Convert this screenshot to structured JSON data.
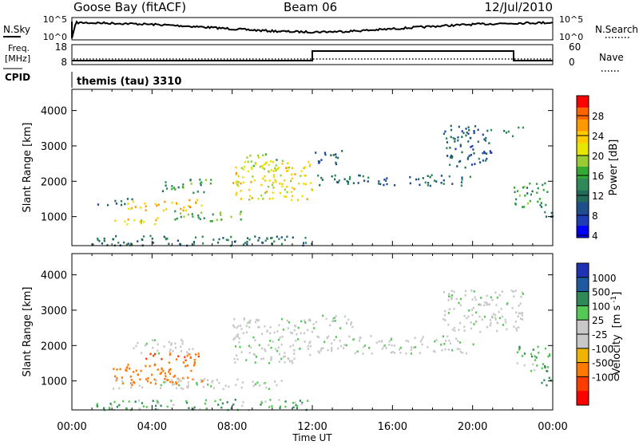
{
  "header": {
    "station": "Goose Bay (fitACF)",
    "beam": "Beam 06",
    "date": "12/Jul/2010"
  },
  "noise_panel": {
    "left_label": "N.Sky",
    "right_label": "N.Search",
    "ticks_left": [
      "10^5",
      "10^0"
    ],
    "ticks_right": [
      "10^5",
      "10^0"
    ]
  },
  "freq_panel": {
    "left_label_1": "Freq.",
    "left_label_2": "[MHz]",
    "right_label": "Nave",
    "ticks_left": [
      "18",
      "8"
    ],
    "ticks_right": [
      "60",
      "0"
    ]
  },
  "cpid": {
    "label": "CPID",
    "value": "themis (tau) 3310"
  },
  "time_axis": {
    "label": "Time UT",
    "ticks": [
      "00:00",
      "04:00",
      "08:00",
      "12:00",
      "16:00",
      "20:00",
      "00:00"
    ]
  },
  "power_colorbar": {
    "label": "Power [dB]",
    "ticks": [
      "28",
      "24",
      "20",
      "16",
      "12",
      "8",
      "4"
    ],
    "colors": [
      "#ff0000",
      "#ff6400",
      "#ff9900",
      "#ffcc00",
      "#e6e600",
      "#99cc33",
      "#33aa33",
      "#2e8b57",
      "#226b5a",
      "#1e4e8c",
      "#1e3cb4",
      "#0000ff"
    ]
  },
  "velocity_colorbar": {
    "label_main": "Velocity",
    "label_units": "[m s",
    "label_exp": "-1",
    "label_close": "]",
    "ticks": [
      "1000",
      "500",
      "100",
      "25",
      "-25",
      "-100",
      "-500",
      "-1000"
    ],
    "colors": [
      "#1e32b4",
      "#1e5aa0",
      "#2e8b57",
      "#55c855",
      "#c8c8c8",
      "#c8c8c8",
      "#f0b400",
      "#ff7800",
      "#ff3c00",
      "#ff0000"
    ]
  },
  "chart_data": [
    {
      "type": "heatmap",
      "title": "",
      "ylabel": "Slant Range [km]",
      "xlabel": "",
      "ylim": [
        180,
        4600
      ],
      "xlim_hours": [
        0,
        24
      ],
      "y_ticks": [
        1000,
        2000,
        3000,
        4000
      ],
      "regions": [
        {
          "t0": 1.0,
          "t1": 12.0,
          "r0": 200,
          "r1": 500,
          "level": "low",
          "power_db": 8
        },
        {
          "t0": 1.2,
          "t1": 3.0,
          "r0": 1350,
          "r1": 1550,
          "level": "low",
          "power_db": 6
        },
        {
          "t0": 2.0,
          "t1": 4.5,
          "r0": 800,
          "r1": 1000,
          "level": "high",
          "power_db": 20
        },
        {
          "t0": 2.5,
          "t1": 6.5,
          "r0": 1200,
          "r1": 1500,
          "level": "high",
          "power_db": 22
        },
        {
          "t0": 4.5,
          "t1": 7.0,
          "r0": 1700,
          "r1": 2100,
          "level": "mid",
          "power_db": 12
        },
        {
          "t0": 5.0,
          "t1": 8.5,
          "r0": 900,
          "r1": 1200,
          "level": "mid",
          "power_db": 14
        },
        {
          "t0": 8.0,
          "t1": 12.0,
          "r0": 1500,
          "r1": 2600,
          "level": "high",
          "power_db": 20
        },
        {
          "t0": 8.5,
          "t1": 10.5,
          "r0": 2300,
          "r1": 2800,
          "level": "mid",
          "power_db": 16
        },
        {
          "t0": 12.2,
          "t1": 20.0,
          "r0": 1900,
          "r1": 2200,
          "level": "low",
          "power_db": 8
        },
        {
          "t0": 12.0,
          "t1": 13.5,
          "r0": 2500,
          "r1": 2900,
          "level": "low",
          "power_db": 6
        },
        {
          "t0": 18.5,
          "t1": 21.0,
          "r0": 2400,
          "r1": 3600,
          "level": "low",
          "power_db": 6
        },
        {
          "t0": 21.5,
          "t1": 22.5,
          "r0": 3300,
          "r1": 3550,
          "level": "low",
          "power_db": 8
        },
        {
          "t0": 22.0,
          "t1": 23.8,
          "r0": 1300,
          "r1": 2000,
          "level": "mid",
          "power_db": 12
        },
        {
          "t0": 23.4,
          "t1": 24.0,
          "r0": 900,
          "r1": 1200,
          "level": "mid",
          "power_db": 10
        }
      ]
    },
    {
      "type": "heatmap",
      "title": "",
      "ylabel": "Slant Range [km]",
      "xlabel": "Time UT",
      "ylim": [
        180,
        4600
      ],
      "xlim_hours": [
        0,
        24
      ],
      "y_ticks": [
        1000,
        2000,
        3000,
        4000
      ],
      "regions": [
        {
          "t0": 1.0,
          "t1": 12.0,
          "r0": 200,
          "r1": 500,
          "velocity": 50
        },
        {
          "t0": 2.0,
          "t1": 6.5,
          "r0": 900,
          "r1": 1500,
          "velocity": -100
        },
        {
          "t0": 3.5,
          "t1": 6.5,
          "r0": 1500,
          "r1": 1800,
          "velocity": -300
        },
        {
          "t0": 2.0,
          "t1": 10.5,
          "r0": 800,
          "r1": 1100,
          "velocity": 0
        },
        {
          "t0": 3.0,
          "t1": 6.0,
          "r0": 1800,
          "r1": 2200,
          "velocity": 0
        },
        {
          "t0": 8.0,
          "t1": 12.0,
          "r0": 1500,
          "r1": 2800,
          "velocity": 0
        },
        {
          "t0": 12.2,
          "t1": 20.0,
          "r0": 1800,
          "r1": 2300,
          "velocity": 0
        },
        {
          "t0": 12.0,
          "t1": 14.0,
          "r0": 2500,
          "r1": 2900,
          "velocity": 0
        },
        {
          "t0": 18.5,
          "t1": 22.5,
          "r0": 2400,
          "r1": 3600,
          "velocity": 0
        },
        {
          "t0": 22.0,
          "t1": 23.8,
          "r0": 1300,
          "r1": 2000,
          "velocity": 50
        },
        {
          "t0": 23.4,
          "t1": 24.0,
          "r0": 900,
          "r1": 1200,
          "velocity": 100
        }
      ]
    }
  ]
}
